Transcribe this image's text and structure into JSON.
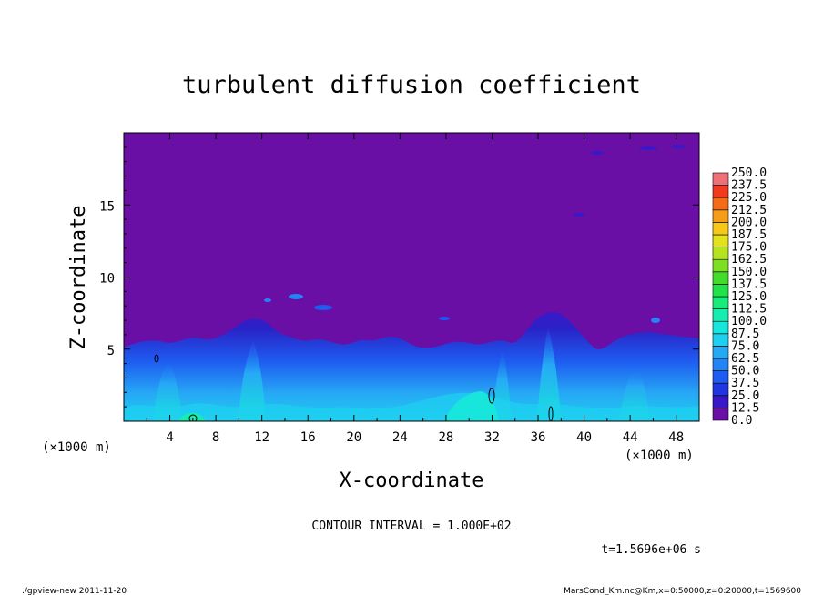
{
  "chart_data": {
    "type": "heatmap",
    "title": "turbulent diffusion coefficient",
    "xlabel": "X-coordinate",
    "ylabel": "Z-coordinate",
    "x_unit": "(×1000 m)",
    "y_unit": "(×1000 m)",
    "xlim": [
      0,
      50
    ],
    "ylim": [
      0,
      20
    ],
    "x_ticks": [
      "4",
      "8",
      "12",
      "16",
      "20",
      "24",
      "28",
      "32",
      "36",
      "40",
      "44",
      "48"
    ],
    "y_ticks": [
      "5",
      "10",
      "15"
    ],
    "contour_interval": "CONTOUR INTERVAL = 1.000E+02",
    "time_label": "t=1.5696e+06 s",
    "colorbar": {
      "levels": [
        "0.0",
        "12.5",
        "25.0",
        "37.5",
        "50.0",
        "62.5",
        "75.0",
        "87.5",
        "100.0",
        "112.5",
        "125.0",
        "137.5",
        "150.0",
        "162.5",
        "175.0",
        "187.5",
        "200.0",
        "212.5",
        "225.0",
        "237.5",
        "250.0"
      ],
      "colors": [
        "#6a0fa6",
        "#3a18c8",
        "#1f36e0",
        "#1e5cf0",
        "#2384f5",
        "#26a9f5",
        "#1fcff0",
        "#18e6dc",
        "#16eeb0",
        "#19ea7c",
        "#22e24a",
        "#44dc2a",
        "#7ede23",
        "#b6e320",
        "#e3e21c",
        "#f5c81a",
        "#f59d18",
        "#f56c18",
        "#f23a1e",
        "#f0707a"
      ]
    },
    "background_color": "#6a0fa6"
  },
  "footer": {
    "left": "./gpview-new   2011-11-20",
    "right": "MarsCond_Km.nc@Km,x=0:50000,z=0:20000,t=1569600"
  }
}
